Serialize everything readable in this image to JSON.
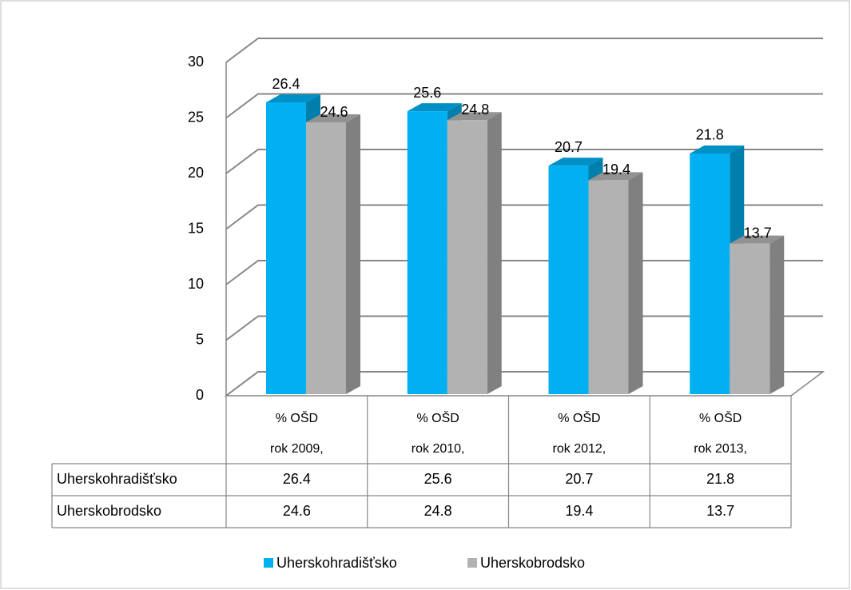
{
  "chart_data": {
    "type": "bar3d",
    "categories": [
      "% OŠD rok 2009,",
      "% OŠD rok 2010,",
      "% OŠD rok 2012,",
      "% OŠD rok 2013,"
    ],
    "series": [
      {
        "name": "Uherskohradišťsko",
        "color": "#00b0f0",
        "values": [
          26.4,
          25.6,
          20.7,
          21.8
        ]
      },
      {
        "name": "Uherskobrodsko",
        "color": "#b2b2b2",
        "values": [
          24.6,
          24.8,
          19.4,
          13.7
        ]
      }
    ],
    "ylim": [
      0,
      30
    ],
    "yticks": [
      0,
      5,
      10,
      15,
      20,
      25,
      30
    ],
    "grid": true,
    "legend": "bottom",
    "data_table": true
  }
}
